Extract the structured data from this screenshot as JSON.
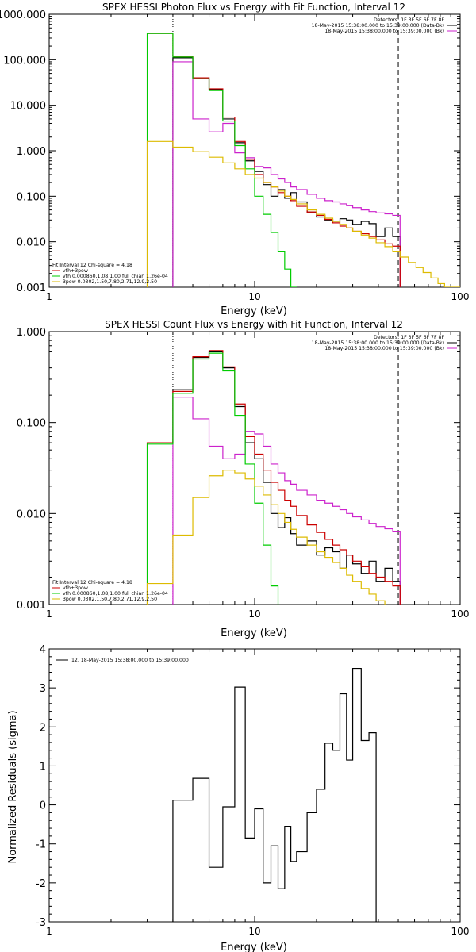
{
  "chart_data": [
    {
      "type": "line",
      "title": "SPEX HESSI Photon Flux vs Energy with Fit Function, Interval 12",
      "xlabel": "Energy (keV)",
      "ylabel": "",
      "x_scale": "log",
      "y_scale": "log",
      "xlim": [
        1,
        100
      ],
      "ylim": [
        0.001,
        1000
      ],
      "x_ticks": [
        "1",
        "10",
        "100"
      ],
      "y_ticks": [
        "0.001",
        "0.010",
        "0.100",
        "1.000",
        "10.000",
        "100.000",
        "1000.000"
      ],
      "bin_edges": [
        3.0,
        4.0,
        5.0,
        6.0,
        7.0,
        8.0,
        9.0,
        10.0,
        11.0,
        12.0,
        13.0,
        14.0,
        15.0,
        16.0,
        18.0,
        20.0,
        22.0,
        24.0,
        26.0,
        28.0,
        30.0,
        33.0,
        36.0,
        39.0,
        43.0,
        47.0,
        51.0,
        56.0,
        61.0,
        66.0,
        72.0,
        78.0,
        84.0,
        100.0
      ],
      "vlines": [
        {
          "x": 4.0,
          "style": "dotted"
        },
        {
          "x": 50.0,
          "style": "dashed"
        }
      ],
      "legend_top_right": [
        {
          "text": "Detectors: 1F 3F 5F 6F 7F 8F",
          "color": "#000000"
        },
        {
          "text": "18-May-2015 15:38:00.000 to 15:39:00.000 (Data-Bk)",
          "color": "#000000"
        },
        {
          "text": "18-May-2015 15:38:00.000 to 15:39:00.000 (Bk)",
          "color": "#cc22cc"
        }
      ],
      "legend_bottom_left": [
        {
          "text": "Fit Interval 12   Chi-square = 4.18",
          "color": "#000000"
        },
        {
          "text": "vth+3pow",
          "color": "#cc0000"
        },
        {
          "text": "vth 0.000860,1.08,1.00   full chian 1.26e-04",
          "color": "#00cc00"
        },
        {
          "text": "3pow 0.0302,1.50,7.80,2.71,12.9,2.50",
          "color": "#ddbb00"
        }
      ],
      "series": [
        {
          "name": "Data-Bk",
          "color": "#000000",
          "values": [
            null,
            110,
            40,
            22,
            5,
            1.5,
            0.6,
            0.35,
            0.18,
            0.1,
            0.14,
            0.09,
            0.12,
            0.075,
            0.045,
            0.035,
            0.03,
            0.028,
            0.032,
            0.03,
            0.024,
            0.028,
            0.025,
            0.013,
            0.02,
            0.013,
            null,
            null,
            null,
            null,
            null,
            null,
            null
          ]
        },
        {
          "name": "Bk",
          "color": "#cc22cc",
          "values": [
            null,
            90,
            5,
            2.6,
            4,
            0.9,
            0.7,
            0.45,
            0.42,
            0.3,
            0.24,
            0.2,
            0.16,
            0.14,
            0.11,
            0.09,
            0.08,
            0.075,
            0.068,
            0.062,
            0.056,
            0.05,
            0.046,
            0.043,
            0.041,
            0.038,
            null,
            null,
            null,
            null,
            null,
            null,
            null
          ]
        },
        {
          "name": "vth+3pow",
          "color": "#cc0000",
          "values": [
            380,
            120,
            40,
            23,
            5.5,
            1.6,
            0.65,
            0.3,
            0.2,
            0.16,
            0.12,
            0.1,
            0.08,
            0.06,
            0.045,
            0.038,
            0.031,
            0.026,
            0.022,
            0.02,
            0.017,
            0.015,
            0.013,
            0.011,
            0.009,
            0.008,
            null,
            null,
            null,
            null,
            null,
            null,
            null
          ]
        },
        {
          "name": "vth",
          "color": "#00cc00",
          "values": [
            380,
            115,
            38,
            21,
            4.5,
            1.3,
            0.4,
            0.1,
            0.04,
            0.016,
            0.006,
            0.0025,
            0.0008,
            null,
            null,
            null,
            null,
            null,
            null,
            null,
            null,
            null,
            null,
            null,
            null,
            null,
            null,
            null,
            null,
            null,
            null,
            null,
            null
          ]
        },
        {
          "name": "3pow",
          "color": "#ddbb00",
          "values": [
            1.6,
            1.2,
            0.95,
            0.72,
            0.54,
            0.4,
            0.3,
            0.25,
            0.2,
            0.16,
            0.13,
            0.1,
            0.085,
            0.068,
            0.05,
            0.04,
            0.033,
            0.028,
            0.024,
            0.02,
            0.017,
            0.014,
            0.012,
            0.0095,
            0.0078,
            0.006,
            0.0046,
            0.0035,
            0.0027,
            0.0021,
            0.0016,
            0.0012,
            0.001
          ]
        }
      ]
    },
    {
      "type": "line",
      "title": "SPEX HESSI Count Flux vs Energy with Fit Function, Interval 12",
      "xlabel": "Energy (keV)",
      "ylabel": "",
      "x_scale": "log",
      "y_scale": "log",
      "xlim": [
        1,
        100
      ],
      "ylim": [
        0.001,
        1
      ],
      "x_ticks": [
        "1",
        "10",
        "100"
      ],
      "y_ticks": [
        "0.001",
        "0.010",
        "0.100",
        "1.000"
      ],
      "bin_edges": [
        3.0,
        4.0,
        5.0,
        6.0,
        7.0,
        8.0,
        9.0,
        10.0,
        11.0,
        12.0,
        13.0,
        14.0,
        15.0,
        16.0,
        18.0,
        20.0,
        22.0,
        24.0,
        26.0,
        28.0,
        30.0,
        33.0,
        36.0,
        39.0,
        43.0,
        47.0,
        51.0
      ],
      "vlines": [
        {
          "x": 4.0,
          "style": "dotted"
        },
        {
          "x": 50.0,
          "style": "dashed"
        }
      ],
      "legend_top_right": [
        {
          "text": "Detectors: 1F 3F 5F 6F 7F 8F",
          "color": "#000000"
        },
        {
          "text": "18-May-2015 15:38:00.000 to 15:39:00.000 (Data-Bk)",
          "color": "#000000"
        },
        {
          "text": "18-May-2015 15:38:00.000 to 15:39:00.000 (Bk)",
          "color": "#cc22cc"
        }
      ],
      "legend_bottom_left": [
        {
          "text": "Fit Interval 12   Chi-square = 4.18",
          "color": "#000000"
        },
        {
          "text": "vth+3pow",
          "color": "#cc0000"
        },
        {
          "text": "vth 0.000860,1.08,1.00   full chian 1.26e-04",
          "color": "#00cc00"
        },
        {
          "text": "3pow 0.0302,1.50,7.80,2.71,12.9,2.50",
          "color": "#ddbb00"
        }
      ],
      "series": [
        {
          "name": "Data-Bk",
          "color": "#000000",
          "values": [
            0.06,
            0.23,
            0.52,
            0.6,
            0.4,
            0.15,
            0.06,
            0.04,
            0.022,
            0.01,
            0.007,
            0.009,
            0.006,
            0.0045,
            0.005,
            0.0035,
            0.0042,
            0.0038,
            0.0025,
            0.0035,
            0.0028,
            0.0022,
            0.003,
            0.0018,
            0.0025,
            0.0018
          ]
        },
        {
          "name": "Bk",
          "color": "#cc22cc",
          "values": [
            null,
            0.19,
            0.11,
            0.055,
            0.04,
            0.045,
            0.08,
            0.075,
            0.055,
            0.035,
            0.028,
            0.023,
            0.021,
            0.018,
            0.016,
            0.014,
            0.013,
            0.012,
            0.011,
            0.01,
            0.0092,
            0.0085,
            0.0078,
            0.0072,
            0.0068,
            0.0064
          ]
        },
        {
          "name": "vth+3pow",
          "color": "#cc0000",
          "values": [
            0.06,
            0.22,
            0.53,
            0.62,
            0.41,
            0.16,
            0.07,
            0.045,
            0.03,
            0.022,
            0.018,
            0.014,
            0.012,
            0.0095,
            0.0075,
            0.0062,
            0.0052,
            0.0045,
            0.004,
            0.0035,
            0.003,
            0.0026,
            0.0022,
            0.002,
            0.0018,
            0.0016
          ]
        },
        {
          "name": "vth",
          "color": "#00cc00",
          "values": [
            0.058,
            0.21,
            0.5,
            0.58,
            0.37,
            0.12,
            0.035,
            0.013,
            0.0045,
            0.0016,
            null,
            null,
            null,
            null,
            null,
            null,
            null,
            null,
            null,
            null,
            null,
            null,
            null,
            null,
            null,
            null
          ]
        },
        {
          "name": "3pow",
          "color": "#ddbb00",
          "values": [
            0.0017,
            0.0058,
            0.015,
            0.026,
            0.03,
            0.028,
            0.024,
            0.02,
            0.016,
            0.0125,
            0.01,
            0.008,
            0.0067,
            0.0055,
            0.0045,
            0.0038,
            0.0033,
            0.0029,
            0.0025,
            0.0021,
            0.0018,
            0.0015,
            0.0013,
            0.0011,
            null,
            null
          ]
        }
      ]
    },
    {
      "type": "line",
      "title": "",
      "xlabel": "Energy (keV)",
      "ylabel": "Normalized Residuals (sigma)",
      "x_scale": "log",
      "y_scale": "linear",
      "xlim": [
        1,
        100
      ],
      "ylim": [
        -3,
        4
      ],
      "x_ticks": [
        "1",
        "10",
        "100"
      ],
      "y_ticks": [
        "-3",
        "-2",
        "-1",
        "0",
        "1",
        "2",
        "3",
        "4"
      ],
      "bin_edges": [
        4.0,
        5.0,
        6.0,
        7.0,
        8.0,
        9.0,
        10.0,
        11.0,
        12.0,
        13.0,
        14.0,
        15.0,
        16.0,
        18.0,
        20.0,
        22.0,
        24.0,
        26.0,
        28.0,
        30.0,
        33.0,
        36.0,
        39.0,
        43.0,
        47.0,
        51.0
      ],
      "legend_top_left": [
        {
          "text": "12. 18-May-2015 15:38:00.000 to 15:39:00.000",
          "color": "#000000"
        }
      ],
      "series": [
        {
          "name": "12. 18-May-2015 15:38:00.000 to 15:39:00.000",
          "color": "#000000",
          "values": [
            0.12,
            0.68,
            -1.6,
            -0.05,
            3.02,
            -0.85,
            -0.1,
            -2.0,
            -1.05,
            -2.15,
            -0.55,
            -1.45,
            -1.2,
            -0.2,
            0.4,
            1.58,
            1.4,
            2.85,
            1.15,
            3.5,
            1.65,
            1.85,
            null,
            null,
            null
          ]
        }
      ]
    }
  ]
}
